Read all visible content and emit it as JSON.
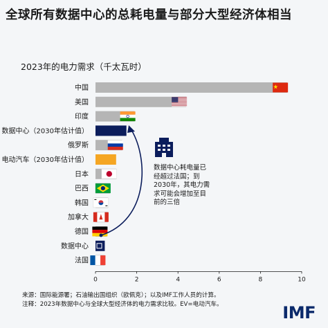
{
  "title": "全球所有数据中心的总耗电量与部分大型经济体相当",
  "annotation_lines": [
    "数据中心耗电量已",
    "经超过法国；到",
    "2030年，其电力需",
    "求可能会增加至目",
    "前的三倍"
  ],
  "source": "来源：国际能源署；石油输出国组织（欧佩克）；以及IMF工作人员的计算。",
  "note": "注释：2023年数据中心与全球大型经济体的电力需求比较。EV=电动汽车。",
  "logo": "IMF",
  "colors": {
    "bar_gray": "#b5b5b5",
    "data_center_navy": "#0b1d5c",
    "ev_yellow": "#f5a623",
    "arrow": "#0b1d5c",
    "background": "#f4f6f8"
  },
  "icons": {
    "annotation": "data-center-building-icon",
    "flags": [
      "china-flag-icon",
      "usa-flag-icon",
      "india-flag-icon",
      "russia-flag-icon",
      "japan-flag-icon",
      "brazil-flag-icon",
      "korea-flag-icon",
      "canada-flag-icon",
      "germany-flag-icon",
      "france-flag-icon"
    ]
  },
  "chart_data": {
    "type": "bar",
    "orientation": "horizontal",
    "title": "全球所有数据中心的总耗电量与部分大型经济体相当",
    "subtitle": "2023年的电力需求（千太瓦时）",
    "categories": [
      "中国",
      "美国",
      "印度",
      "数据中心（2030年估计值）",
      "俄罗斯",
      "电动汽车（2030年估计值）",
      "日本",
      "巴西",
      "韩国",
      "加拿大",
      "德国",
      "数据中心",
      "法国"
    ],
    "values": [
      9.3,
      4.4,
      1.9,
      1.5,
      1.3,
      1.0,
      1.0,
      0.7,
      0.6,
      0.6,
      0.55,
      0.45,
      0.45
    ],
    "xlim": [
      0,
      10
    ],
    "xticks": [
      "0",
      "2",
      "4",
      "6",
      "8",
      "10"
    ],
    "grid": false,
    "legend": "none"
  }
}
